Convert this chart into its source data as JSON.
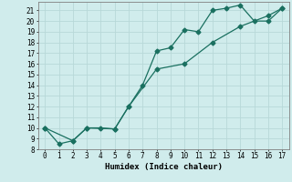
{
  "line1_x": [
    0,
    1,
    2,
    3,
    4,
    5,
    6,
    7,
    8,
    9,
    10,
    11,
    12,
    13,
    14,
    15,
    16,
    17
  ],
  "line1_y": [
    10,
    8.5,
    8.8,
    10,
    10,
    9.9,
    12,
    14,
    17.2,
    17.5,
    19.2,
    19.0,
    21.0,
    21.2,
    21.5,
    20.0,
    20.0,
    21.2
  ],
  "line2_x": [
    0,
    2,
    3,
    5,
    6,
    8,
    10,
    12,
    14,
    16,
    17
  ],
  "line2_y": [
    10,
    8.8,
    10,
    9.9,
    12,
    15.5,
    16.0,
    18.0,
    19.5,
    20.5,
    21.2
  ],
  "line_color": "#1a7060",
  "bg_color": "#d0ecec",
  "grid_color": "#b8d8d8",
  "xlabel": "Humidex (Indice chaleur)",
  "xlim": [
    -0.5,
    17.5
  ],
  "ylim": [
    8,
    21.8
  ],
  "xticks": [
    0,
    1,
    2,
    3,
    4,
    5,
    6,
    7,
    8,
    9,
    10,
    11,
    12,
    13,
    14,
    15,
    16,
    17
  ],
  "yticks": [
    8,
    9,
    10,
    11,
    12,
    13,
    14,
    15,
    16,
    17,
    18,
    19,
    20,
    21
  ],
  "xlabel_fontsize": 6.5,
  "tick_fontsize": 5.5,
  "marker_size": 2.5,
  "line_width": 0.9
}
